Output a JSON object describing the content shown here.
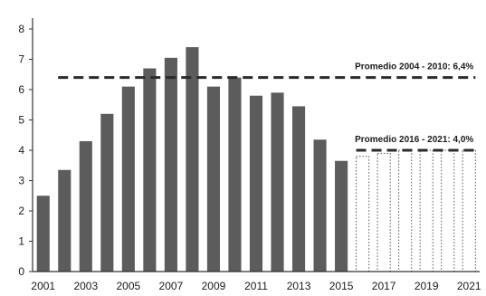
{
  "chart_data": {
    "type": "bar",
    "categories": [
      "2001",
      "2002",
      "2003",
      "2004",
      "2005",
      "2006",
      "2007",
      "2008",
      "2009",
      "2010",
      "2011",
      "2012",
      "2013",
      "2014",
      "2015",
      "2016",
      "2017",
      "2018",
      "2019",
      "2020",
      "2021"
    ],
    "x_tick_labels": [
      "2001",
      "2003",
      "2005",
      "2007",
      "2009",
      "2011",
      "2013",
      "2015",
      "2017",
      "2019",
      "2021"
    ],
    "series": [
      {
        "values": [
          2.5,
          3.35,
          4.3,
          5.2,
          6.1,
          6.7,
          7.05,
          7.4,
          6.1,
          6.4,
          5.8,
          5.9,
          5.45,
          4.35,
          3.65,
          null,
          null,
          null,
          null,
          null,
          null
        ],
        "color": "#5c5c5c"
      },
      {
        "values": [
          null,
          null,
          null,
          null,
          null,
          null,
          null,
          null,
          null,
          null,
          null,
          null,
          null,
          null,
          null,
          3.8,
          3.9,
          4.0,
          4.0,
          4.0,
          4.0
        ],
        "style": "dotted-outline",
        "color": "#555555"
      }
    ],
    "ylim": [
      0,
      8
    ],
    "yticks": [
      0,
      1,
      2,
      3,
      4,
      5,
      6,
      7,
      8
    ],
    "annotations": [
      {
        "text": "Promedio 2004 - 2010: 6,4%",
        "value": 6.4,
        "from": "2002",
        "to": "2021",
        "style": "dashed"
      },
      {
        "text": "Promedio 2016 - 2021: 4,0%",
        "value": 4.0,
        "from": "2016",
        "to": "2021",
        "style": "dashed"
      }
    ],
    "grid": false,
    "title": "",
    "xlabel": "",
    "ylabel": ""
  }
}
